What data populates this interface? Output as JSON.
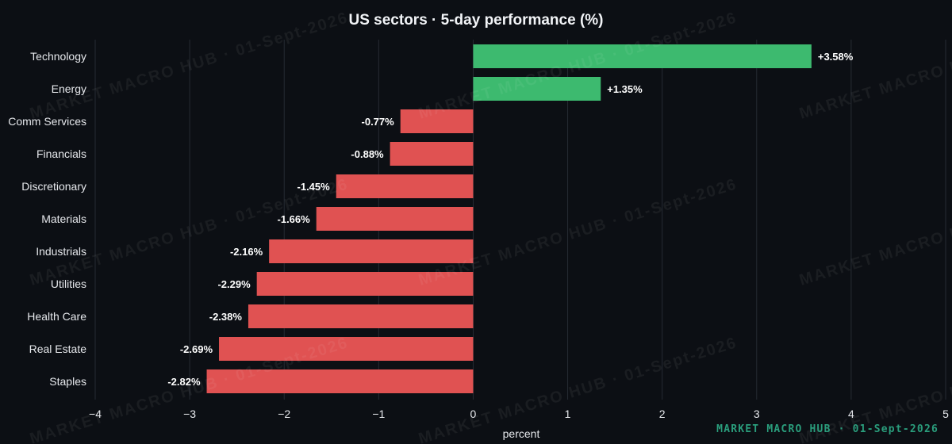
{
  "colors": {
    "background": "#0c0f14",
    "positive": "#3dba6f",
    "negative": "#e05252",
    "grid": "#262b33",
    "text": "#e6e8ec",
    "footer": "#2a9d7c"
  },
  "watermark": "MARKET MACRO HUB · 01-Sept-2026",
  "footer": "MARKET MACRO HUB · 01-Sept-2026",
  "chart_data": {
    "type": "bar",
    "orientation": "horizontal",
    "title": "US sectors · 5-day performance (%)",
    "xlabel": "percent",
    "ylabel": "",
    "xlim": [
      -4,
      5
    ],
    "xticks": [
      -4,
      -3,
      -2,
      -1,
      0,
      1,
      2,
      3,
      4,
      5
    ],
    "grid": "vertical",
    "categories": [
      "Technology",
      "Energy",
      "Comm Services",
      "Financials",
      "Discretionary",
      "Materials",
      "Industrials",
      "Utilities",
      "Health Care",
      "Real Estate",
      "Staples"
    ],
    "values": [
      3.58,
      1.35,
      -0.77,
      -0.88,
      -1.45,
      -1.66,
      -2.16,
      -2.29,
      -2.38,
      -2.69,
      -2.82
    ],
    "data_labels": [
      "+3.58%",
      "+1.35%",
      "-0.77%",
      "-0.88%",
      "-1.45%",
      "-1.66%",
      "-2.16%",
      "-2.29%",
      "-2.38%",
      "-2.69%",
      "-2.82%"
    ]
  }
}
